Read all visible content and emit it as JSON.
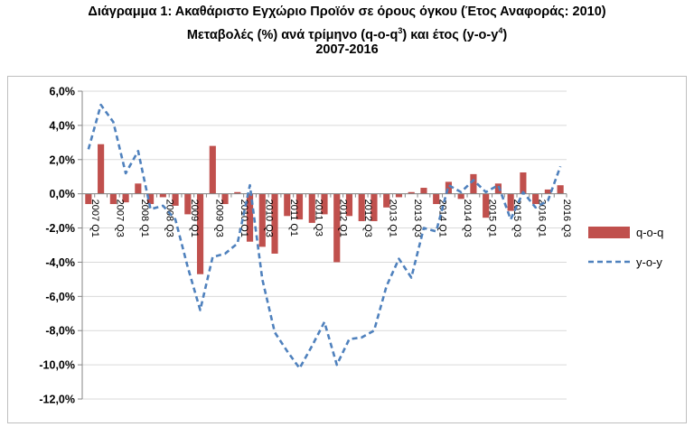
{
  "title": {
    "line1": "Διάγραμμα 1: Ακαθάριστο Εγχώριο Προϊόν σε όρους όγκου (Έτος Αναφοράς: 2010)",
    "line2_pre": "Μεταβολές (%) ανά τρίμηνο (q-o-q",
    "line2_sup1": "3",
    "line2_mid": ") και έτος (y-o-y",
    "line2_sup2": "4",
    "line2_post": ")",
    "line3": "2007-2016"
  },
  "colors": {
    "bars": "#c0504d",
    "line": "#4f81bd",
    "axis": "#868686",
    "grid": "#d9d9d9"
  },
  "chart_data": {
    "type": "bar+line",
    "ylim": [
      -12,
      6
    ],
    "ytick_step": 2,
    "ytick_labels": [
      "6,0%",
      "4,0%",
      "2,0%",
      "0,0%",
      "-2,0%",
      "-4,0%",
      "-6,0%",
      "-8,0%",
      "-10,0%",
      "-12,0%"
    ],
    "ytick_values": [
      6,
      4,
      2,
      0,
      -2,
      -4,
      -6,
      -8,
      -10,
      -12
    ],
    "categories": [
      "2007 Q1",
      "2007 Q2",
      "2007 Q3",
      "2007 Q4",
      "2008 Q1",
      "2008 Q2",
      "2008 Q3",
      "2008 Q4",
      "2009 Q1",
      "2009 Q2",
      "2009 Q3",
      "2009 Q4",
      "2010 Q1",
      "2010 Q2",
      "2010 Q3",
      "2010 Q4",
      "2011 Q1",
      "2011 Q2",
      "2011 Q3",
      "2011 Q4",
      "2012 Q1",
      "2012 Q2",
      "2012 Q3",
      "2012 Q4",
      "2013 Q1",
      "2013 Q2",
      "2013 Q3",
      "2013 Q4",
      "2014 Q1",
      "2014 Q2",
      "2014 Q3",
      "2014 Q4",
      "2015 Q1",
      "2015 Q2",
      "2015 Q3",
      "2015 Q4",
      "2016 Q1",
      "2016 Q2",
      "2016 Q3"
    ],
    "shown_x_labels": [
      "2007 Q1",
      "2007 Q3",
      "2008 Q1",
      "2008 Q3",
      "2009 Q1",
      "2009 Q3",
      "2010 Q1",
      "2010 Q3",
      "2011 Q1",
      "2011 Q3",
      "2012 Q1",
      "2012 Q3",
      "2013 Q1",
      "2013 Q3",
      "2014 Q1",
      "2014 Q3",
      "2015 Q1",
      "2015 Q3",
      "2016 Q1",
      "2016 Q3"
    ],
    "series": [
      {
        "name": "q-o-q",
        "kind": "bar",
        "values": [
          -0.6,
          2.9,
          -0.6,
          -0.5,
          0.6,
          -0.6,
          -0.2,
          -0.7,
          -1.2,
          -4.7,
          2.8,
          -0.6,
          0.1,
          -2.8,
          -3.1,
          -3.5,
          -1.3,
          -1.5,
          -1.7,
          -1.2,
          -4.0,
          -1.3,
          -1.6,
          -1.6,
          -0.8,
          -0.2,
          0.1,
          0.35,
          -0.6,
          0.7,
          -0.3,
          1.15,
          -1.4,
          0.6,
          -1.0,
          1.25,
          -0.6,
          0.25,
          0.5
        ]
      },
      {
        "name": "y-o-y",
        "kind": "line",
        "values": [
          2.6,
          5.2,
          4.2,
          1.2,
          2.5,
          -0.9,
          -0.7,
          -1.5,
          -4.3,
          -6.8,
          -3.7,
          -3.5,
          -2.9,
          0.5,
          -5.0,
          -8.1,
          -9.2,
          -10.2,
          -8.9,
          -7.5,
          -10.0,
          -8.5,
          -8.4,
          -8.0,
          -5.4,
          -3.8,
          -4.9,
          -2.0,
          -2.2,
          0.5,
          0.1,
          0.8,
          0.1,
          0.5,
          -1.5,
          0.1,
          -0.8,
          -0.4,
          1.6
        ]
      }
    ],
    "legend_position": "right",
    "grid": "horizontal"
  }
}
